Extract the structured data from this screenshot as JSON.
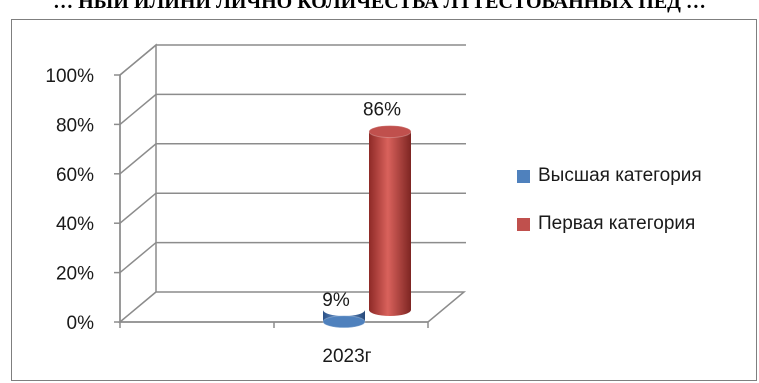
{
  "page_title": "… НЫЙ ИЛИНИ ЛИЧНО КОЛИЧЕСТВА ЛТТЕСТОВАННЫХ ПЕД …",
  "chart_data": {
    "type": "bar",
    "bar_style": "3d-cylinder",
    "categories": [
      "2023г"
    ],
    "series": [
      {
        "name": "Высшая категория",
        "values": [
          9
        ],
        "color": "#4f81bd"
      },
      {
        "name": "Первая категория",
        "values": [
          86
        ],
        "color": "#c0504d"
      }
    ],
    "data_labels": [
      "9%",
      "86%"
    ],
    "yticks": [
      "0%",
      "20%",
      "40%",
      "60%",
      "80%",
      "100%"
    ],
    "ylim": [
      0,
      100
    ],
    "grid": true,
    "legend_position": "right"
  }
}
